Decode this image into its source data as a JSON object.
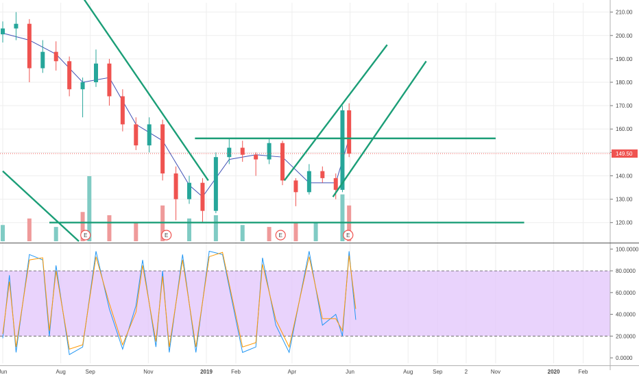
{
  "chart_data": [
    {
      "type": "candlestick",
      "panel": "price",
      "y_ticks": [
        "120.00",
        "130.00",
        "140.00",
        "150.00",
        "160.00",
        "170.00",
        "180.00",
        "190.00",
        "200.00",
        "210.00"
      ],
      "ylim": [
        112,
        214
      ],
      "price_label": "149.50",
      "last_price": 149.5,
      "earnings_marker": "E",
      "earnings_dates": [
        "2018-08-27",
        "2018-11-20",
        "2019-03-20",
        "2019-05-30"
      ],
      "candles": [
        {
          "t": "2018-06-01",
          "o": 200.5,
          "h": 206.0,
          "l": 197.0,
          "c": 203.0
        },
        {
          "t": "2018-06-15",
          "o": 203.0,
          "h": 210.0,
          "l": 198.0,
          "c": 205.0
        },
        {
          "t": "2018-06-29",
          "o": 205.0,
          "h": 207.0,
          "l": 180.0,
          "c": 186.0
        },
        {
          "t": "2018-07-13",
          "o": 186.0,
          "h": 198.0,
          "l": 184.0,
          "c": 193.0
        },
        {
          "t": "2018-07-27",
          "o": 193.0,
          "h": 197.5,
          "l": 185.0,
          "c": 189.0
        },
        {
          "t": "2018-08-10",
          "o": 189.0,
          "h": 191.0,
          "l": 174.0,
          "c": 177.0
        },
        {
          "t": "2018-08-24",
          "o": 177.0,
          "h": 182.0,
          "l": 165.0,
          "c": 180.0
        },
        {
          "t": "2018-09-07",
          "o": 180.0,
          "h": 194.0,
          "l": 178.0,
          "c": 188.0
        },
        {
          "t": "2018-09-21",
          "o": 188.0,
          "h": 190.0,
          "l": 170.0,
          "c": 174.0
        },
        {
          "t": "2018-10-05",
          "o": 174.0,
          "h": 177.0,
          "l": 159.0,
          "c": 162.0
        },
        {
          "t": "2018-10-19",
          "o": 162.0,
          "h": 165.0,
          "l": 151.0,
          "c": 153.0
        },
        {
          "t": "2018-11-02",
          "o": 153.0,
          "h": 165.0,
          "l": 150.0,
          "c": 162.0
        },
        {
          "t": "2018-11-16",
          "o": 162.0,
          "h": 164.0,
          "l": 138.0,
          "c": 141.0
        },
        {
          "t": "2018-11-30",
          "o": 141.0,
          "h": 144.0,
          "l": 121.0,
          "c": 130.0
        },
        {
          "t": "2018-12-14",
          "o": 130.0,
          "h": 140.0,
          "l": 128.0,
          "c": 137.0
        },
        {
          "t": "2018-12-28",
          "o": 137.0,
          "h": 139.0,
          "l": 120.0,
          "c": 125.0
        },
        {
          "t": "2019-01-11",
          "o": 125.0,
          "h": 150.0,
          "l": 124.0,
          "c": 148.0
        },
        {
          "t": "2019-01-25",
          "o": 148.0,
          "h": 156.0,
          "l": 145.0,
          "c": 152.0
        },
        {
          "t": "2019-02-08",
          "o": 152.0,
          "h": 155.0,
          "l": 146.0,
          "c": 149.0
        },
        {
          "t": "2019-02-22",
          "o": 149.0,
          "h": 150.0,
          "l": 140.0,
          "c": 147.0
        },
        {
          "t": "2019-03-08",
          "o": 147.0,
          "h": 156.0,
          "l": 145.0,
          "c": 154.0
        },
        {
          "t": "2019-03-22",
          "o": 154.0,
          "h": 155.0,
          "l": 136.0,
          "c": 138.0
        },
        {
          "t": "2019-04-05",
          "o": 138.0,
          "h": 139.0,
          "l": 127.0,
          "c": 133.0
        },
        {
          "t": "2019-04-19",
          "o": 133.0,
          "h": 145.0,
          "l": 132.0,
          "c": 142.0
        },
        {
          "t": "2019-05-03",
          "o": 142.0,
          "h": 144.0,
          "l": 137.0,
          "c": 139.0
        },
        {
          "t": "2019-05-17",
          "o": 139.0,
          "h": 141.0,
          "l": 130.0,
          "c": 134.0
        },
        {
          "t": "2019-05-24",
          "o": 134.0,
          "h": 170.0,
          "l": 133.0,
          "c": 168.0
        },
        {
          "t": "2019-05-31",
          "o": 168.0,
          "h": 171.0,
          "l": 148.0,
          "c": 149.5
        }
      ],
      "moving_average": [
        {
          "t": "2018-06-01",
          "v": 201
        },
        {
          "t": "2018-06-29",
          "v": 198
        },
        {
          "t": "2018-07-27",
          "v": 192
        },
        {
          "t": "2018-08-24",
          "v": 180
        },
        {
          "t": "2018-09-21",
          "v": 182
        },
        {
          "t": "2018-10-19",
          "v": 162
        },
        {
          "t": "2018-11-16",
          "v": 155
        },
        {
          "t": "2018-12-14",
          "v": 136
        },
        {
          "t": "2018-12-28",
          "v": 131
        },
        {
          "t": "2019-01-25",
          "v": 147
        },
        {
          "t": "2019-02-22",
          "v": 149
        },
        {
          "t": "2019-03-22",
          "v": 148
        },
        {
          "t": "2019-04-19",
          "v": 137
        },
        {
          "t": "2019-05-17",
          "v": 137
        },
        {
          "t": "2019-05-31",
          "v": 156
        }
      ],
      "volume": [
        {
          "t": "2018-06-01",
          "v": 0.25,
          "up": true
        },
        {
          "t": "2018-06-29",
          "v": 0.35,
          "up": false
        },
        {
          "t": "2018-07-27",
          "v": 0.22,
          "up": true
        },
        {
          "t": "2018-08-24",
          "v": 0.45,
          "up": false
        },
        {
          "t": "2018-08-31",
          "v": 1.0,
          "up": true
        },
        {
          "t": "2018-09-21",
          "v": 0.4,
          "up": false
        },
        {
          "t": "2018-10-19",
          "v": 0.3,
          "up": false
        },
        {
          "t": "2018-11-16",
          "v": 0.55,
          "up": false
        },
        {
          "t": "2018-12-14",
          "v": 0.35,
          "up": true
        },
        {
          "t": "2019-01-11",
          "v": 0.4,
          "up": true
        },
        {
          "t": "2019-02-08",
          "v": 0.25,
          "up": true
        },
        {
          "t": "2019-03-08",
          "v": 0.22,
          "up": false
        },
        {
          "t": "2019-04-05",
          "v": 0.3,
          "up": false
        },
        {
          "t": "2019-04-26",
          "v": 0.28,
          "up": true
        },
        {
          "t": "2019-05-24",
          "v": 0.72,
          "up": true
        },
        {
          "t": "2019-05-31",
          "v": 0.55,
          "up": false
        }
      ],
      "trendlines": [
        {
          "t1": "2018-08-01",
          "v1": 230.0,
          "t2": "2019-01-03",
          "v2": 138.0
        },
        {
          "t1": "2018-06-01",
          "v1": 142.0,
          "t2": "2018-08-20",
          "v2": 112.0
        },
        {
          "t1": "2018-12-20",
          "v1": 156.0,
          "t2": "2019-11-01",
          "v2": 156.0
        },
        {
          "t1": "2018-07-20",
          "v1": 120.0,
          "t2": "2019-12-01",
          "v2": 120.0
        },
        {
          "t1": "2019-03-24",
          "v1": 138.0,
          "t2": "2019-07-10",
          "v2": 196.0
        },
        {
          "t1": "2019-05-14",
          "v1": 131.0,
          "t2": "2019-08-20",
          "v2": 189.0
        }
      ]
    },
    {
      "type": "line",
      "panel": "stochastic",
      "y_ticks": [
        "0.0000",
        "20.0000",
        "40.0000",
        "60.0000",
        "80.0000",
        "100.0000"
      ],
      "ylim": [
        -5,
        104
      ],
      "upper_band": 80,
      "lower_band": 20,
      "series": [
        {
          "color": "#2196f3",
          "points": [
            {
              "t": "2018-06-01",
              "v": 18
            },
            {
              "t": "2018-06-08",
              "v": 76
            },
            {
              "t": "2018-06-15",
              "v": 5
            },
            {
              "t": "2018-06-29",
              "v": 95
            },
            {
              "t": "2018-07-13",
              "v": 90
            },
            {
              "t": "2018-07-20",
              "v": 20
            },
            {
              "t": "2018-07-27",
              "v": 85
            },
            {
              "t": "2018-08-10",
              "v": 3
            },
            {
              "t": "2018-08-24",
              "v": 10
            },
            {
              "t": "2018-09-07",
              "v": 98
            },
            {
              "t": "2018-09-21",
              "v": 45
            },
            {
              "t": "2018-10-05",
              "v": 8
            },
            {
              "t": "2018-10-19",
              "v": 48
            },
            {
              "t": "2018-10-26",
              "v": 90
            },
            {
              "t": "2018-11-09",
              "v": 10
            },
            {
              "t": "2018-11-16",
              "v": 80
            },
            {
              "t": "2018-11-23",
              "v": 5
            },
            {
              "t": "2018-12-07",
              "v": 95
            },
            {
              "t": "2018-12-21",
              "v": 5
            },
            {
              "t": "2019-01-04",
              "v": 98
            },
            {
              "t": "2019-01-18",
              "v": 95
            },
            {
              "t": "2019-02-08",
              "v": 5
            },
            {
              "t": "2019-02-22",
              "v": 10
            },
            {
              "t": "2019-03-01",
              "v": 92
            },
            {
              "t": "2019-03-15",
              "v": 30
            },
            {
              "t": "2019-03-29",
              "v": 5
            },
            {
              "t": "2019-04-19",
              "v": 98
            },
            {
              "t": "2019-05-03",
              "v": 30
            },
            {
              "t": "2019-05-17",
              "v": 40
            },
            {
              "t": "2019-05-24",
              "v": 20
            },
            {
              "t": "2019-05-31",
              "v": 98
            },
            {
              "t": "2019-06-07",
              "v": 35
            }
          ]
        },
        {
          "color": "#ff9800",
          "points": [
            {
              "t": "2018-06-01",
              "v": 22
            },
            {
              "t": "2018-06-08",
              "v": 70
            },
            {
              "t": "2018-06-15",
              "v": 10
            },
            {
              "t": "2018-06-29",
              "v": 90
            },
            {
              "t": "2018-07-13",
              "v": 92
            },
            {
              "t": "2018-07-20",
              "v": 25
            },
            {
              "t": "2018-07-27",
              "v": 80
            },
            {
              "t": "2018-08-10",
              "v": 8
            },
            {
              "t": "2018-08-24",
              "v": 12
            },
            {
              "t": "2018-09-07",
              "v": 93
            },
            {
              "t": "2018-09-21",
              "v": 50
            },
            {
              "t": "2018-10-05",
              "v": 12
            },
            {
              "t": "2018-10-19",
              "v": 42
            },
            {
              "t": "2018-10-26",
              "v": 85
            },
            {
              "t": "2018-11-09",
              "v": 15
            },
            {
              "t": "2018-11-16",
              "v": 75
            },
            {
              "t": "2018-11-23",
              "v": 10
            },
            {
              "t": "2018-12-07",
              "v": 90
            },
            {
              "t": "2018-12-21",
              "v": 10
            },
            {
              "t": "2019-01-04",
              "v": 93
            },
            {
              "t": "2019-01-18",
              "v": 97
            },
            {
              "t": "2019-02-08",
              "v": 10
            },
            {
              "t": "2019-02-22",
              "v": 14
            },
            {
              "t": "2019-03-01",
              "v": 86
            },
            {
              "t": "2019-03-15",
              "v": 35
            },
            {
              "t": "2019-03-29",
              "v": 10
            },
            {
              "t": "2019-04-19",
              "v": 93
            },
            {
              "t": "2019-05-03",
              "v": 36
            },
            {
              "t": "2019-05-17",
              "v": 36
            },
            {
              "t": "2019-05-24",
              "v": 25
            },
            {
              "t": "2019-05-31",
              "v": 94
            },
            {
              "t": "2019-06-07",
              "v": 45
            }
          ]
        }
      ]
    }
  ],
  "time_axis": {
    "labels": [
      {
        "text": "Jun",
        "t": "2018-06-01",
        "bold": false
      },
      {
        "text": "Aug",
        "t": "2018-08-01",
        "bold": false
      },
      {
        "text": "Sep",
        "t": "2018-09-01",
        "bold": false
      },
      {
        "text": "Nov",
        "t": "2018-11-01",
        "bold": false
      },
      {
        "text": "2019",
        "t": "2019-01-01",
        "bold": true
      },
      {
        "text": "Feb",
        "t": "2019-02-01",
        "bold": false
      },
      {
        "text": "Apr",
        "t": "2019-04-01",
        "bold": false
      },
      {
        "text": "Jun",
        "t": "2019-06-01",
        "bold": false
      },
      {
        "text": "Aug",
        "t": "2019-08-01",
        "bold": false
      },
      {
        "text": "Sep",
        "t": "2019-09-01",
        "bold": false
      },
      {
        "text": "2",
        "t": "2019-10-01",
        "bold": false
      },
      {
        "text": "Nov",
        "t": "2019-11-01",
        "bold": false
      },
      {
        "text": "2020",
        "t": "2020-01-01",
        "bold": true
      },
      {
        "text": "Feb",
        "t": "2020-02-01",
        "bold": false
      }
    ]
  },
  "colors": {
    "up": "#26a69a",
    "down": "#ef5350",
    "volume_up": "#80cbc4",
    "volume_down": "#ef9a9a",
    "trendline": "#1b9e77",
    "ma": "#3f51b5",
    "price_label_bg": "#ef5350",
    "band_fill": "#e1c4fb",
    "band_line": "#555555",
    "grid": "#eeeeee",
    "earnings": "#ef5350"
  }
}
